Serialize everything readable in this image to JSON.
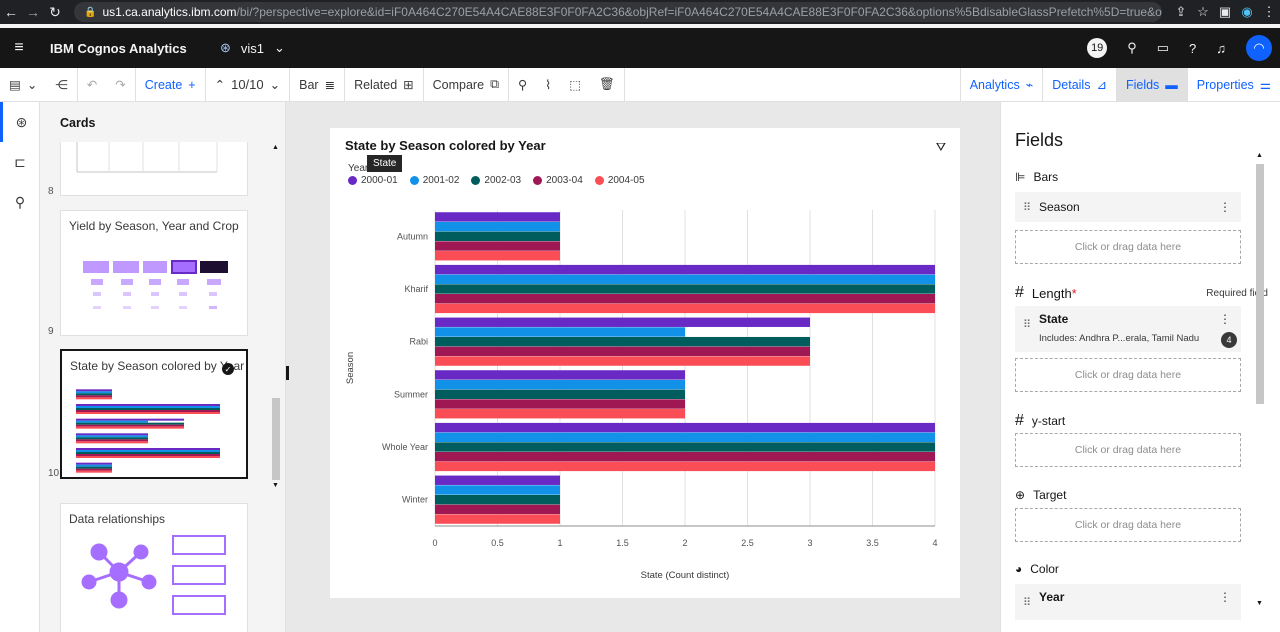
{
  "browser": {
    "host": "us1.ca.analytics.ibm.com",
    "path": "/bi/?perspective=explore&id=iF0A464C270E54A4CAE88E3F0F0FA2C36&objRef=iF0A464C270E54A4CAE88E3F0F0FA2C36&options%5BdisableGlassPrefetch%5D=true&opti..."
  },
  "appbar": {
    "brand": "IBM Cognos Analytics",
    "vis_name": "vis1",
    "notification_count": "19"
  },
  "toolbar": {
    "create": "Create",
    "counter": "10/10",
    "bar": "Bar",
    "related": "Related",
    "compare": "Compare",
    "analytics": "Analytics",
    "details": "Details",
    "fields": "Fields",
    "properties": "Properties"
  },
  "cards": {
    "title": "Cards",
    "items": [
      {
        "number": "8",
        "label": ""
      },
      {
        "number": "9",
        "label": "Yield by Season, Year and Crop"
      },
      {
        "number": "10",
        "label": "State by Season colored by Year"
      },
      {
        "number": "",
        "label": "Data relationships"
      }
    ]
  },
  "chart": {
    "title": "State by Season colored by Year",
    "legend_title": "Year",
    "tooltip": "State",
    "colors": [
      "#6929c4",
      "#1192e8",
      "#005d5d",
      "#9f1853",
      "#fa4d56"
    ]
  },
  "chart_data": {
    "type": "bar",
    "orientation": "horizontal",
    "categories": [
      "Autumn",
      "Kharif",
      "Rabi",
      "Summer",
      "Whole Year",
      "Winter"
    ],
    "series": [
      {
        "name": "2000-01",
        "values": [
          1,
          4,
          3,
          2,
          4,
          1
        ]
      },
      {
        "name": "2001-02",
        "values": [
          1,
          4,
          2,
          2,
          4,
          1
        ]
      },
      {
        "name": "2002-03",
        "values": [
          1,
          4,
          3,
          2,
          4,
          1
        ]
      },
      {
        "name": "2003-04",
        "values": [
          1,
          4,
          3,
          2,
          4,
          1
        ]
      },
      {
        "name": "2004-05",
        "values": [
          1,
          4,
          3,
          2,
          4,
          1
        ]
      }
    ],
    "xlabel": "State (Count distinct)",
    "ylabel": "Season",
    "xlim": [
      0,
      4
    ],
    "xticks": [
      "0",
      "0.5",
      "1",
      "1.5",
      "2",
      "2.5",
      "3",
      "3.5",
      "4"
    ],
    "grid": true,
    "legend_position": "top-left"
  },
  "fields": {
    "title": "Fields",
    "bars_label": "Bars",
    "bars_item": "Season",
    "drop_text": "Click or drag data here",
    "length_label": "Length",
    "length_required_mark": "*",
    "required_text": "Required field",
    "length_item": "State",
    "length_includes": "Includes: Andhra P...erala, Tamil Nadu",
    "length_count": "4",
    "ystart_label": "y-start",
    "target_label": "Target",
    "color_label": "Color",
    "color_item": "Year"
  }
}
